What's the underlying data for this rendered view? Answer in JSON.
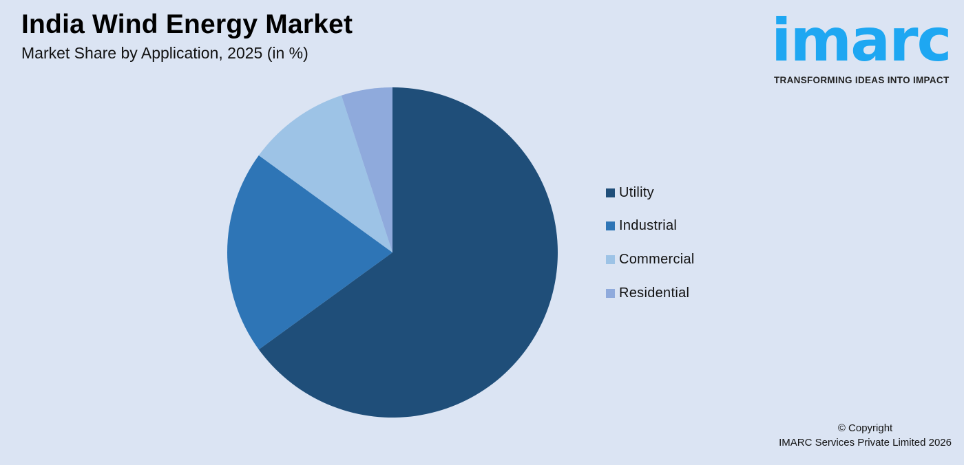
{
  "header": {
    "title": "India Wind Energy Market",
    "subtitle": "Market Share by Application, 2025 (in %)"
  },
  "logo": {
    "wordmark": "imarc",
    "tagline": "TRANSFORMING IDEAS INTO IMPACT",
    "color": "#1ea7f2"
  },
  "legend": {
    "items": [
      {
        "label": "Utility",
        "color": "#1f4e79"
      },
      {
        "label": "Industrial",
        "color": "#2e75b6"
      },
      {
        "label": "Commercial",
        "color": "#9dc3e6"
      },
      {
        "label": "Residential",
        "color": "#8faadc"
      }
    ]
  },
  "footer": {
    "copyright_line1": "© Copyright",
    "copyright_line2": "IMARC Services Private Limited 2026"
  },
  "chart_data": {
    "type": "pie",
    "title": "India Wind Energy Market",
    "subtitle": "Market Share by Application, 2025 (in %)",
    "categories": [
      "Utility",
      "Industrial",
      "Commercial",
      "Residential"
    ],
    "values": [
      65,
      20,
      10,
      5
    ],
    "colors": [
      "#1f4e79",
      "#2e75b6",
      "#9dc3e6",
      "#8faadc"
    ],
    "start_angle": "12 o'clock, clockwise",
    "legend_position": "right",
    "data_labels": false
  }
}
